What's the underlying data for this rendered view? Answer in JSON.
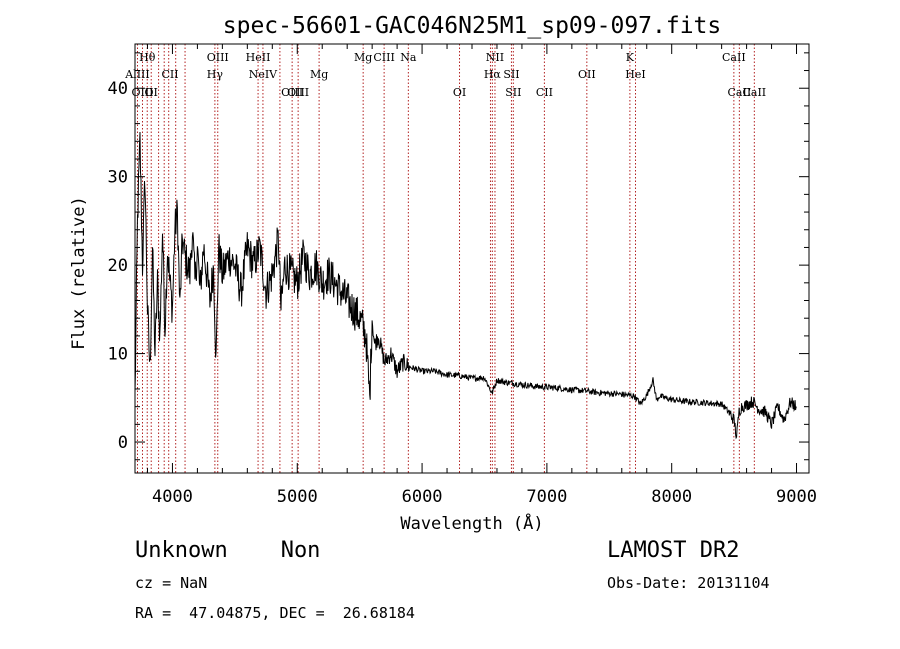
{
  "chart_data": {
    "type": "line",
    "title": "spec-56601-GAC046N25M1_sp09-097.fits",
    "xlabel": "Wavelength (Å)",
    "ylabel": "Flux (relative)",
    "xlim": [
      3700,
      9100
    ],
    "ylim": [
      -3.5,
      45
    ],
    "xticks": [
      4000,
      5000,
      6000,
      7000,
      8000,
      9000
    ],
    "yticks": [
      0,
      10,
      20,
      30,
      40
    ],
    "grid": false,
    "series": [
      {
        "color": "#000000",
        "x": [
          3700,
          3720,
          3740,
          3760,
          3780,
          3800,
          3820,
          3840,
          3860,
          3880,
          3900,
          3920,
          3940,
          3960,
          3980,
          4000,
          4020,
          4040,
          4060,
          4080,
          4100,
          4120,
          4140,
          4160,
          4180,
          4200,
          4220,
          4250,
          4300,
          4330,
          4350,
          4370,
          4400,
          4450,
          4500,
          4550,
          4600,
          4650,
          4700,
          4750,
          4800,
          4850,
          4870,
          4900,
          4950,
          5000,
          5050,
          5100,
          5150,
          5200,
          5250,
          5300,
          5350,
          5400,
          5450,
          5500,
          5550,
          5580,
          5600,
          5620,
          5650,
          5700,
          5750,
          5800,
          5850,
          5900,
          6000,
          6100,
          6200,
          6300,
          6400,
          6500,
          6560,
          6600,
          6650,
          6700,
          6800,
          6900,
          7000,
          7100,
          7200,
          7300,
          7400,
          7500,
          7600,
          7700,
          7750,
          7800,
          7850,
          7880,
          7900,
          7950,
          8000,
          8100,
          8200,
          8300,
          8400,
          8450,
          8500,
          8520,
          8540,
          8560,
          8600,
          8650,
          8700,
          8750,
          8800,
          8850,
          8900,
          8950,
          9000
        ],
        "y": [
          5,
          25,
          34,
          20,
          30,
          15,
          8,
          22,
          10,
          18,
          12,
          24,
          13,
          22,
          18,
          15,
          24,
          26,
          15,
          23,
          21,
          20,
          19,
          24,
          18,
          22,
          17,
          22,
          16,
          20,
          9,
          22,
          19,
          21,
          20,
          17,
          22,
          20,
          22,
          17,
          19,
          23,
          15,
          20,
          19,
          18,
          21,
          19,
          20,
          18,
          19,
          18,
          17,
          16,
          15,
          14,
          12,
          5,
          14,
          11,
          12,
          9,
          10,
          8,
          9,
          8.5,
          8,
          8,
          7.6,
          7.5,
          7.2,
          7.3,
          5.5,
          7,
          6.8,
          6.7,
          6.5,
          6.3,
          6.2,
          6.1,
          5.9,
          5.8,
          5.6,
          5.5,
          5.4,
          5.2,
          4.3,
          5.3,
          7,
          4.7,
          5.2,
          5,
          4.8,
          4.6,
          4.5,
          4.4,
          4.3,
          3.5,
          2.5,
          0.5,
          3.5,
          4,
          4.2,
          4.6,
          3.7,
          3.4,
          2,
          4,
          2.5,
          4.5,
          4
        ]
      }
    ],
    "line_labels": [
      {
        "label": "Hθ",
        "row": 0,
        "x": 3798
      },
      {
        "label": "OIII",
        "row": 0,
        "x": 4363
      },
      {
        "label": "HeII",
        "row": 0,
        "x": 4686
      },
      {
        "label": "Mg",
        "row": 0,
        "x": 5528
      },
      {
        "label": "CIII",
        "row": 0,
        "x": 5696
      },
      {
        "label": "Na",
        "row": 0,
        "x": 5890
      },
      {
        "label": "NII",
        "row": 0,
        "x": 6584
      },
      {
        "label": "K",
        "row": 0,
        "x": 7665
      },
      {
        "label": "CaII",
        "row": 0,
        "x": 8498
      },
      {
        "label": "AlIII",
        "row": 1,
        "x": 3720
      },
      {
        "label": "CII",
        "row": 1,
        "x": 3981
      },
      {
        "label": "Hγ",
        "row": 1,
        "x": 4340
      },
      {
        "label": "NeIV",
        "row": 1,
        "x": 4725
      },
      {
        "label": "Mg",
        "row": 1,
        "x": 5175
      },
      {
        "label": "Hα",
        "row": 1,
        "x": 6563
      },
      {
        "label": "SII",
        "row": 1,
        "x": 6716
      },
      {
        "label": "OII",
        "row": 1,
        "x": 7320
      },
      {
        "label": "HeI",
        "row": 1,
        "x": 7710
      },
      {
        "label": "OIII",
        "row": 2,
        "x": 3760
      },
      {
        "label": "OI",
        "row": 2,
        "x": 3830
      },
      {
        "label": "OIII",
        "row": 2,
        "x": 4959
      },
      {
        "label": "OIII",
        "row": 2,
        "x": 5007
      },
      {
        "label": "OI",
        "row": 2,
        "x": 6300
      },
      {
        "label": "SII",
        "row": 2,
        "x": 6731
      },
      {
        "label": "CII",
        "row": 2,
        "x": 6980
      },
      {
        "label": "CaII",
        "row": 2,
        "x": 8542
      },
      {
        "label": "CaII",
        "row": 2,
        "x": 8662
      }
    ],
    "line_markers": [
      3720,
      3760,
      3798,
      3830,
      3889,
      3934,
      3970,
      4026,
      4101,
      4340,
      4363,
      4686,
      4725,
      4861,
      4959,
      5007,
      5175,
      5528,
      5696,
      5890,
      6300,
      6548,
      6563,
      6584,
      6716,
      6731,
      6980,
      7320,
      7665,
      7710,
      8498,
      8542,
      8662
    ]
  },
  "info": {
    "object": "Unknown    Non",
    "survey": "LAMOST DR2",
    "cz": "cz = NaN",
    "obs_date": "Obs-Date: 20131104",
    "radec": "RA =  47.04875, DEC =  26.68184"
  }
}
